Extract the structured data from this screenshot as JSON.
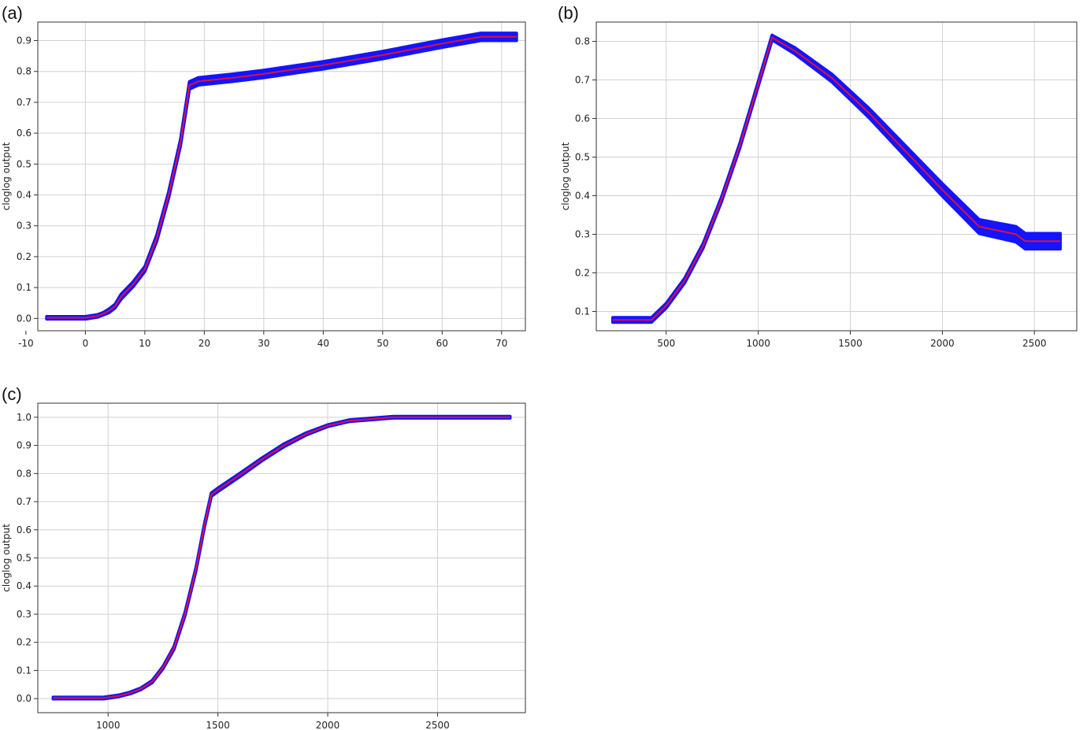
{
  "colors": {
    "band": "#1414ff",
    "mean": "#e0103a",
    "grid": "#d2d2d2",
    "axis": "#333333"
  },
  "chart_data": [
    {
      "panel": "(a)",
      "type": "line",
      "ylabel": "cloglog output",
      "xlabel": "",
      "xlim": [
        -8,
        74
      ],
      "ylim": [
        -0.04,
        0.96
      ],
      "xticks": [
        -10,
        0,
        10,
        20,
        30,
        40,
        50,
        60,
        70
      ],
      "yticks": [
        0.0,
        0.1,
        0.2,
        0.3,
        0.4,
        0.5,
        0.6,
        0.7,
        0.8,
        0.9
      ],
      "band_width": [
        0.004,
        0.004,
        0.004,
        0.004,
        0.006,
        0.006,
        0.008,
        0.008,
        0.008,
        0.01,
        0.01,
        0.01,
        0.012,
        0.012,
        0.012,
        0.012,
        0.012,
        0.012,
        0.012,
        0.012,
        0.012
      ],
      "series": [
        {
          "name": "",
          "x": [
            -6.5,
            0,
            2,
            3,
            4,
            5,
            6,
            8,
            10,
            12,
            14,
            16,
            17.5,
            19,
            25,
            30,
            40,
            50,
            60,
            66.5,
            72.5
          ],
          "y": [
            0.002,
            0.002,
            0.008,
            0.015,
            0.025,
            0.04,
            0.07,
            0.11,
            0.16,
            0.26,
            0.4,
            0.57,
            0.755,
            0.768,
            0.78,
            0.792,
            0.82,
            0.853,
            0.89,
            0.912,
            0.912
          ]
        }
      ]
    },
    {
      "panel": "(b)",
      "type": "line",
      "ylabel": "cloglog output",
      "xlabel": "",
      "xlim": [
        120,
        2730
      ],
      "ylim": [
        0.05,
        0.85
      ],
      "xticks": [
        500,
        1000,
        1500,
        2000,
        2500
      ],
      "yticks": [
        0.1,
        0.2,
        0.3,
        0.4,
        0.5,
        0.6,
        0.7,
        0.8
      ],
      "band_width": [
        0.006,
        0.006,
        0.006,
        0.006,
        0.006,
        0.006,
        0.006,
        0.006,
        0.006,
        0.008,
        0.01,
        0.012,
        0.014,
        0.016,
        0.018,
        0.02,
        0.02,
        0.02
      ],
      "series": [
        {
          "name": "",
          "x": [
            210,
            420,
            500,
            600,
            700,
            800,
            900,
            1000,
            1075,
            1200,
            1400,
            1600,
            1800,
            2000,
            2200,
            2400,
            2450,
            2640
          ],
          "y": [
            0.078,
            0.078,
            0.115,
            0.18,
            0.27,
            0.39,
            0.53,
            0.69,
            0.81,
            0.775,
            0.705,
            0.615,
            0.515,
            0.415,
            0.32,
            0.3,
            0.282,
            0.282
          ]
        }
      ]
    },
    {
      "panel": "(c)",
      "type": "line",
      "ylabel": "cloglog output",
      "xlabel": "",
      "xlim": [
        680,
        2900
      ],
      "ylim": [
        -0.05,
        1.05
      ],
      "xticks": [
        1000,
        1500,
        2000,
        2500
      ],
      "yticks": [
        0.0,
        0.1,
        0.2,
        0.3,
        0.4,
        0.5,
        0.6,
        0.7,
        0.8,
        0.9,
        1.0
      ],
      "band_width": [
        0.003,
        0.003,
        0.003,
        0.003,
        0.003,
        0.004,
        0.004,
        0.005,
        0.006,
        0.006,
        0.006,
        0.006,
        0.006,
        0.006,
        0.005,
        0.005,
        0.004,
        0.003,
        0.003,
        0.003,
        0.003
      ],
      "series": [
        {
          "name": "",
          "x": [
            750,
            980,
            1050,
            1100,
            1150,
            1200,
            1250,
            1300,
            1350,
            1400,
            1440,
            1470,
            1500,
            1600,
            1700,
            1800,
            1900,
            2000,
            2100,
            2300,
            2830
          ],
          "y": [
            0.002,
            0.002,
            0.01,
            0.02,
            0.035,
            0.06,
            0.11,
            0.18,
            0.3,
            0.46,
            0.62,
            0.725,
            0.742,
            0.795,
            0.85,
            0.9,
            0.94,
            0.97,
            0.988,
            1.0,
            1.0
          ]
        }
      ]
    }
  ]
}
